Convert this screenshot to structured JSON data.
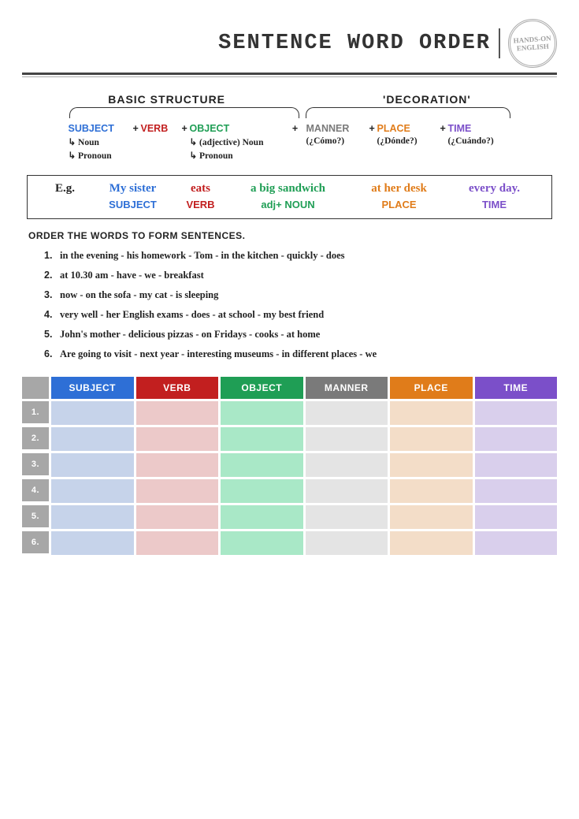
{
  "title": "SENTENCE WORD ORDER",
  "stamp": "HANDS-ON\nENGLISH",
  "colors": {
    "subject": "#2e6fd6",
    "verb": "#c21f1f",
    "object": "#1f9e55",
    "manner": "#7a7a7a",
    "place": "#e07c1a",
    "time": "#7b4fc9",
    "header_gray": "#a7a7a7",
    "row_num_bg": "#a7a7a7",
    "cell_subject": "#c6d3ea",
    "cell_verb": "#ecc9c9",
    "cell_object": "#a9e8c7",
    "cell_manner": "#e4e4e4",
    "cell_place": "#f3ddc8",
    "cell_time": "#d9cfec"
  },
  "section_heads": {
    "left": "BASIC STRUCTURE",
    "right": "'DECORATION'"
  },
  "parts": {
    "subject": {
      "label": "SUBJECT",
      "subs": [
        "Noun",
        "Pronoun"
      ]
    },
    "verb": {
      "label": "VERB"
    },
    "object": {
      "label": "OBJECT",
      "subs": [
        "(adjective) Noun",
        "Pronoun"
      ]
    },
    "manner": {
      "label": "MANNER",
      "hint": "(¿Cómo?)"
    },
    "place": {
      "label": "PLACE",
      "hint": "(¿Dónde?)"
    },
    "time": {
      "label": "TIME",
      "hint": "(¿Cuándo?)"
    }
  },
  "plus": "+",
  "example": {
    "lead": "E.g.",
    "words": {
      "subject": "My sister",
      "verb": "eats",
      "object": "a big sandwich",
      "place": "at her desk",
      "time": "every day."
    },
    "labels": {
      "subject": "SUBJECT",
      "verb": "VERB",
      "object": "adj+ NOUN",
      "place": "PLACE",
      "time": "TIME"
    }
  },
  "instruction": "ORDER THE WORDS TO FORM SENTENCES.",
  "questions": [
    "in the evening  -  his homework  -  Tom  -  in the kitchen  -  quickly  -  does",
    "at 10.30 am  -  have  -  we  -  breakfast",
    "now  -  on the sofa  -  my cat  -  is sleeping",
    "very well  -  her English exams  -  does  -  at school  -  my best friend",
    "John's mother  -  delicious pizzas  -  on Fridays  -  cooks  -  at home",
    "Are going to visit  -  next year  -  interesting museums  -  in different places  -  we"
  ],
  "table": {
    "headers": [
      "SUBJECT",
      "VERB",
      "OBJECT",
      "MANNER",
      "PLACE",
      "TIME"
    ],
    "row_count": 6
  }
}
